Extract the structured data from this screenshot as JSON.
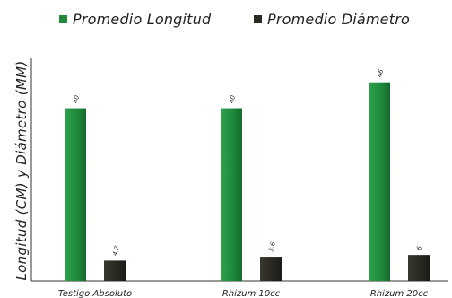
{
  "chart_data": {
    "type": "bar",
    "categories": [
      "Testigo Absoluto",
      "Rhizum 10cc",
      "Rhizum 20cc"
    ],
    "series": [
      {
        "name": "Promedio Longitud",
        "values": [
          40,
          40,
          46
        ],
        "labels": [
          "40",
          "40",
          "46"
        ],
        "color": "#1f8a3c"
      },
      {
        "name": "Promedio Diámetro",
        "values": [
          4.7,
          5.6,
          6
        ],
        "labels": [
          "4.7",
          "5.6",
          "6"
        ],
        "color": "#2b2a22"
      }
    ],
    "ylabel": "Longitud (CM) y Diámetro (MM)",
    "ylim": [
      0,
      50
    ],
    "grid": false,
    "legend_position": "top"
  }
}
